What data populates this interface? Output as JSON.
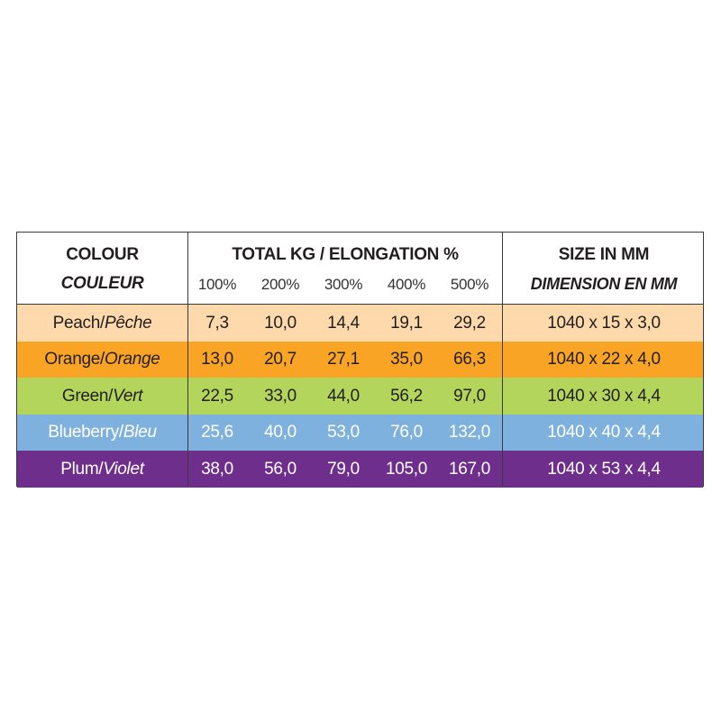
{
  "table": {
    "header": {
      "colour": "COLOUR",
      "couleur": "COULEUR",
      "total": "TOTAL KG / ELONGATION %",
      "elongations": [
        "100%",
        "200%",
        "300%",
        "400%",
        "500%"
      ],
      "size": "SIZE IN MM",
      "dimension": "DIMENSION EN MM"
    },
    "rows": [
      {
        "name": "Peach/",
        "name_fr": "Pêche",
        "values": [
          "7,3",
          "10,0",
          "14,4",
          "19,1",
          "29,2"
        ],
        "size": "1040 x 15 x 3,0",
        "color": "#fdd9ab",
        "text_color": "#231f20"
      },
      {
        "name": "Orange/",
        "name_fr": "Orange",
        "values": [
          "13,0",
          "20,7",
          "27,1",
          "35,0",
          "66,3"
        ],
        "size": "1040 x 22 x 4,0",
        "color": "#f9a425",
        "text_color": "#231f20"
      },
      {
        "name": "Green/",
        "name_fr": "Vert",
        "values": [
          "22,5",
          "33,0",
          "44,0",
          "56,2",
          "97,0"
        ],
        "size": "1040 x 30 x 4,4",
        "color": "#b4d55c",
        "text_color": "#231f20"
      },
      {
        "name": "Blueberry/",
        "name_fr": "Bleu",
        "values": [
          "25,6",
          "40,0",
          "53,0",
          "76,0",
          "132,0"
        ],
        "size": "1040 x 40 x 4,4",
        "color": "#7fb1df",
        "text_color": "#ffffff"
      },
      {
        "name": "Plum/",
        "name_fr": "Violet",
        "values": [
          "38,0",
          "56,0",
          "79,0",
          "105,0",
          "167,0"
        ],
        "size": "1040 x 53 x 4,4",
        "color": "#6d2f8b",
        "text_color": "#ffffff"
      }
    ]
  }
}
